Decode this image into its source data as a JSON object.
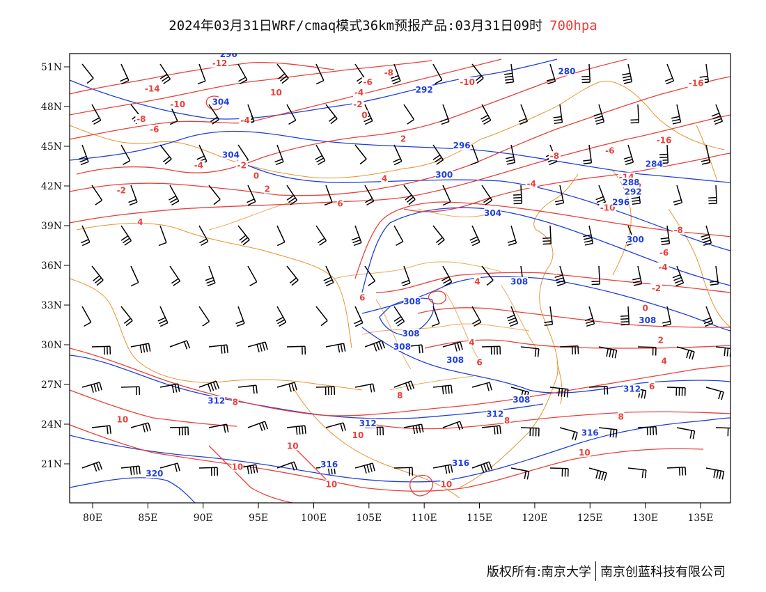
{
  "header": {
    "title": "2024年03月31日WRF/cmaq模式36km预报产品:03月31日09时",
    "level": "700hpa"
  },
  "footer": {
    "copyright": "版权所有:南京大学",
    "company": "南京创蓝科技有限公司"
  },
  "colors": {
    "temperature": "#e8413a",
    "height": "#1f3fe0",
    "border": "#e8932e",
    "wind": "#000000"
  },
  "map": {
    "lon_range": [
      78,
      138
    ],
    "lat_range": [
      18,
      52
    ],
    "lon_ticks": [
      "80E",
      "85E",
      "90E",
      "95E",
      "100E",
      "105E",
      "110E",
      "115E",
      "120E",
      "125E",
      "130E",
      "135E"
    ],
    "lat_ticks": [
      "51N",
      "48N",
      "45N",
      "42N",
      "39N",
      "36N",
      "33N",
      "30N",
      "27N",
      "24N",
      "21N"
    ]
  },
  "temperature_labels": [
    {
      "text": "-12",
      "lon": 91.5,
      "lat": 51.2
    },
    {
      "text": "-14",
      "lon": 85.4,
      "lat": 49.3
    },
    {
      "text": "-10",
      "lon": 87.7,
      "lat": 48.1
    },
    {
      "text": "-8",
      "lon": 84.4,
      "lat": 47.0
    },
    {
      "text": "-6",
      "lon": 85.6,
      "lat": 46.2
    },
    {
      "text": "10",
      "lon": 96.6,
      "lat": 49.0
    },
    {
      "text": "-8",
      "lon": 106.8,
      "lat": 50.5
    },
    {
      "text": "-6",
      "lon": 104.9,
      "lat": 49.8
    },
    {
      "text": "-4",
      "lon": 104.1,
      "lat": 49.0
    },
    {
      "text": "-2",
      "lon": 104.0,
      "lat": 48.1
    },
    {
      "text": "0",
      "lon": 104.6,
      "lat": 47.3
    },
    {
      "text": "-4",
      "lon": 93.8,
      "lat": 46.9
    },
    {
      "text": "-10",
      "lon": 113.9,
      "lat": 49.8
    },
    {
      "text": "2",
      "lon": 108.1,
      "lat": 45.5
    },
    {
      "text": "-4",
      "lon": 89.6,
      "lat": 43.5
    },
    {
      "text": "-2",
      "lon": 93.5,
      "lat": 43.5
    },
    {
      "text": "0",
      "lon": 94.8,
      "lat": 42.7
    },
    {
      "text": "-2",
      "lon": 82.6,
      "lat": 41.6
    },
    {
      "text": "2",
      "lon": 95.8,
      "lat": 41.7
    },
    {
      "text": "4",
      "lon": 106.4,
      "lat": 42.5
    },
    {
      "text": "6",
      "lon": 102.4,
      "lat": 40.6
    },
    {
      "text": "4",
      "lon": 84.3,
      "lat": 39.2
    },
    {
      "text": "-8",
      "lon": 121.8,
      "lat": 44.2
    },
    {
      "text": "-6",
      "lon": 126.8,
      "lat": 44.6
    },
    {
      "text": "-4",
      "lon": 119.7,
      "lat": 42.1
    },
    {
      "text": "-16",
      "lon": 131.7,
      "lat": 45.4
    },
    {
      "text": "-16",
      "lon": 134.6,
      "lat": 49.7
    },
    {
      "text": "-14",
      "lon": 128.3,
      "lat": 42.6
    },
    {
      "text": "-12",
      "lon": 129.0,
      "lat": 41.9
    },
    {
      "text": "-10",
      "lon": 126.6,
      "lat": 40.3
    },
    {
      "text": "-8",
      "lon": 133.0,
      "lat": 38.6
    },
    {
      "text": "-6",
      "lon": 131.7,
      "lat": 36.9
    },
    {
      "text": "-4",
      "lon": 131.6,
      "lat": 35.8
    },
    {
      "text": "-2",
      "lon": 131.0,
      "lat": 34.2
    },
    {
      "text": "0",
      "lon": 130.0,
      "lat": 32.7
    },
    {
      "text": "2",
      "lon": 131.4,
      "lat": 30.3
    },
    {
      "text": "4",
      "lon": 131.7,
      "lat": 28.7
    },
    {
      "text": "6",
      "lon": 130.6,
      "lat": 26.8
    },
    {
      "text": "8",
      "lon": 127.8,
      "lat": 24.5
    },
    {
      "text": "4",
      "lon": 114.8,
      "lat": 34.7
    },
    {
      "text": "6",
      "lon": 104.4,
      "lat": 33.5
    },
    {
      "text": "4",
      "lon": 114.3,
      "lat": 30.1
    },
    {
      "text": "6",
      "lon": 115.0,
      "lat": 28.6
    },
    {
      "text": "8",
      "lon": 107.8,
      "lat": 26.1
    },
    {
      "text": "8",
      "lon": 117.5,
      "lat": 24.2
    },
    {
      "text": "8",
      "lon": 92.9,
      "lat": 25.6
    },
    {
      "text": "10",
      "lon": 82.7,
      "lat": 24.3
    },
    {
      "text": "10",
      "lon": 104.0,
      "lat": 23.1
    },
    {
      "text": "10",
      "lon": 98.1,
      "lat": 22.3
    },
    {
      "text": "10",
      "lon": 93.1,
      "lat": 20.7
    },
    {
      "text": "10",
      "lon": 101.6,
      "lat": 19.4
    },
    {
      "text": "10",
      "lon": 112.0,
      "lat": 19.4
    },
    {
      "text": "10",
      "lon": 124.5,
      "lat": 21.8
    }
  ],
  "height_labels": [
    {
      "text": "296",
      "lon": 92.3,
      "lat": 51.9
    },
    {
      "text": "304",
      "lon": 91.6,
      "lat": 48.3
    },
    {
      "text": "304",
      "lon": 92.5,
      "lat": 44.3
    },
    {
      "text": "292",
      "lon": 110.0,
      "lat": 49.2
    },
    {
      "text": "296",
      "lon": 113.4,
      "lat": 45.0
    },
    {
      "text": "300",
      "lon": 111.8,
      "lat": 42.8
    },
    {
      "text": "304",
      "lon": 116.2,
      "lat": 39.9
    },
    {
      "text": "280",
      "lon": 122.9,
      "lat": 50.6
    },
    {
      "text": "284",
      "lon": 130.8,
      "lat": 43.6
    },
    {
      "text": "288",
      "lon": 128.7,
      "lat": 42.2
    },
    {
      "text": "292",
      "lon": 128.9,
      "lat": 41.5
    },
    {
      "text": "296",
      "lon": 127.8,
      "lat": 40.7
    },
    {
      "text": "300",
      "lon": 129.1,
      "lat": 37.9
    },
    {
      "text": "308",
      "lon": 108.9,
      "lat": 33.2
    },
    {
      "text": "308",
      "lon": 108.8,
      "lat": 30.8
    },
    {
      "text": "308",
      "lon": 118.6,
      "lat": 34.7
    },
    {
      "text": "308",
      "lon": 108.0,
      "lat": 29.8
    },
    {
      "text": "308",
      "lon": 130.2,
      "lat": 31.8
    },
    {
      "text": "308",
      "lon": 112.8,
      "lat": 28.8
    },
    {
      "text": "308",
      "lon": 118.8,
      "lat": 25.8
    },
    {
      "text": "312",
      "lon": 91.2,
      "lat": 25.7
    },
    {
      "text": "312",
      "lon": 128.8,
      "lat": 26.6
    },
    {
      "text": "312",
      "lon": 116.4,
      "lat": 24.7
    },
    {
      "text": "312",
      "lon": 104.9,
      "lat": 24.0
    },
    {
      "text": "316",
      "lon": 125.0,
      "lat": 23.3
    },
    {
      "text": "316",
      "lon": 101.4,
      "lat": 20.9
    },
    {
      "text": "316",
      "lon": 113.3,
      "lat": 21.0
    },
    {
      "text": "320",
      "lon": 85.6,
      "lat": 20.2
    }
  ]
}
